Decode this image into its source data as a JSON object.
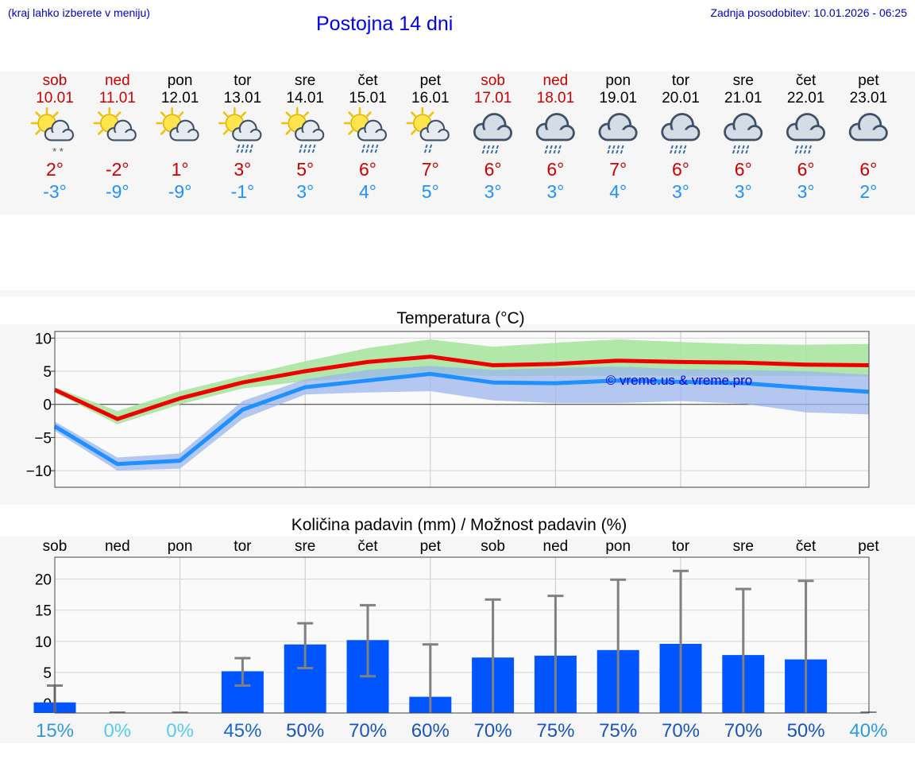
{
  "header": {
    "menu_hint": "(kraj lahko izberete v meniju)",
    "title": "Postojna 14 dni",
    "last_update": "Zadnja posodobitev: 10.01.2026 - 06:25"
  },
  "colors": {
    "weekend": "#cc0000",
    "weekday": "#000000",
    "tmax": "#cc0000",
    "tmin": "#1e90ff",
    "tmax_line": "#ee0000",
    "tmin_line": "#1e90ff",
    "tmax_band": "#a8e4a0",
    "tmin_band": "#9bb6ee",
    "bar": "#0055ff",
    "whisker": "#808080",
    "link": "#0000ee"
  },
  "days": [
    {
      "name": "sob",
      "date": "10.01",
      "weekend": true,
      "icon": "sun-cloud-snow-icon",
      "tmax": "2°",
      "tmin": "-3°"
    },
    {
      "name": "ned",
      "date": "11.01",
      "weekend": true,
      "icon": "sun-cloud-icon",
      "tmax": "-2°",
      "tmin": "-9°"
    },
    {
      "name": "pon",
      "date": "12.01",
      "weekend": false,
      "icon": "sun-cloud-icon",
      "tmax": "1°",
      "tmin": "-9°"
    },
    {
      "name": "tor",
      "date": "13.01",
      "weekend": false,
      "icon": "sun-cloud-rain-icon",
      "tmax": "3°",
      "tmin": "-1°"
    },
    {
      "name": "sre",
      "date": "14.01",
      "weekend": false,
      "icon": "sun-cloud-rain-icon",
      "tmax": "5°",
      "tmin": "3°"
    },
    {
      "name": "čet",
      "date": "15.01",
      "weekend": false,
      "icon": "sun-cloud-rain-icon",
      "tmax": "6°",
      "tmin": "4°"
    },
    {
      "name": "pet",
      "date": "16.01",
      "weekend": false,
      "icon": "sun-cloud-light-rain-icon",
      "tmax": "7°",
      "tmin": "5°"
    },
    {
      "name": "sob",
      "date": "17.01",
      "weekend": true,
      "icon": "cloud-rain-icon",
      "tmax": "6°",
      "tmin": "3°"
    },
    {
      "name": "ned",
      "date": "18.01",
      "weekend": true,
      "icon": "cloud-rain-icon",
      "tmax": "6°",
      "tmin": "3°"
    },
    {
      "name": "pon",
      "date": "19.01",
      "weekend": false,
      "icon": "cloud-rain-icon",
      "tmax": "7°",
      "tmin": "4°"
    },
    {
      "name": "tor",
      "date": "20.01",
      "weekend": false,
      "icon": "cloud-rain-icon",
      "tmax": "6°",
      "tmin": "3°"
    },
    {
      "name": "sre",
      "date": "21.01",
      "weekend": false,
      "icon": "cloud-rain-icon",
      "tmax": "6°",
      "tmin": "3°"
    },
    {
      "name": "čet",
      "date": "22.01",
      "weekend": false,
      "icon": "cloud-rain-icon",
      "tmax": "6°",
      "tmin": "3°"
    },
    {
      "name": "pet",
      "date": "23.01",
      "weekend": false,
      "icon": "cloud-icon",
      "tmax": "6°",
      "tmin": "2°"
    }
  ],
  "chart_data": [
    {
      "type": "line",
      "title": "Temperatura (°C)",
      "x": [
        0,
        1,
        2,
        3,
        4,
        5,
        6,
        7,
        8,
        9,
        10,
        11,
        12,
        13
      ],
      "ylim": [
        -12.5,
        11
      ],
      "yticks": [
        10,
        5,
        0,
        -5,
        -10
      ],
      "ytick_labels": [
        "10",
        "5",
        "0",
        "−5",
        "−10"
      ],
      "series": [
        {
          "name": "tmax",
          "values": [
            2.2,
            -2.2,
            0.9,
            3.3,
            5.0,
            6.4,
            7.2,
            5.9,
            6.1,
            6.6,
            6.4,
            6.3,
            6.0,
            5.9
          ],
          "band_low": [
            1.8,
            -3.0,
            0.0,
            2.4,
            3.5,
            4.0,
            4.5,
            4.3,
            4.3,
            4.3,
            4.3,
            4.3,
            4.3,
            4.2
          ],
          "band_high": [
            2.6,
            -1.0,
            2.0,
            4.3,
            6.5,
            8.5,
            9.8,
            8.7,
            9.3,
            9.8,
            9.4,
            9.1,
            9.0,
            9.1
          ]
        },
        {
          "name": "tmin",
          "values": [
            -3.3,
            -9.0,
            -8.5,
            -0.8,
            2.6,
            3.6,
            4.6,
            3.3,
            3.2,
            3.6,
            3.4,
            3.2,
            2.5,
            1.9
          ],
          "band_low": [
            -4.0,
            -10.0,
            -9.7,
            -2.2,
            1.5,
            1.8,
            2.0,
            0.6,
            0.2,
            0.2,
            0.5,
            0.1,
            -1.2,
            -1.5
          ],
          "band_high": [
            -2.6,
            -8.0,
            -7.4,
            0.5,
            3.8,
            5.2,
            5.8,
            5.2,
            5.5,
            5.7,
            5.3,
            5.2,
            5.0,
            4.5
          ]
        }
      ],
      "watermark": "© vreme.us & vreme.pro"
    },
    {
      "type": "bar",
      "title": "Količina padavin (mm) / Možnost padavin (%)",
      "categories": [
        "sob",
        "ned",
        "pon",
        "tor",
        "sre",
        "čet",
        "pet",
        "sob",
        "ned",
        "pon",
        "tor",
        "sre",
        "čet",
        "pet"
      ],
      "values": [
        0.2,
        0,
        0,
        5.2,
        9.5,
        10.2,
        1.1,
        7.4,
        7.7,
        8.6,
        9.6,
        7.8,
        7.1,
        0
      ],
      "err_low": [
        0,
        0,
        0,
        2.9,
        5.7,
        4.4,
        0,
        0,
        0,
        0,
        0,
        0,
        0,
        0
      ],
      "err_high": [
        2.9,
        0,
        0,
        7.3,
        12.9,
        15.8,
        9.5,
        16.7,
        17.3,
        19.9,
        21.3,
        18.4,
        19.7,
        0
      ],
      "ylim": [
        -1.5,
        23.5
      ],
      "yticks": [
        20,
        15,
        10,
        5,
        0
      ],
      "ytick_labels": [
        "20",
        "15",
        "10",
        "5",
        "0"
      ],
      "probability": [
        "15%",
        "0%",
        "0%",
        "45%",
        "50%",
        "70%",
        "60%",
        "70%",
        "75%",
        "75%",
        "70%",
        "70%",
        "50%",
        "40%"
      ],
      "probability_colors": [
        "#3399dd",
        "#55ccee",
        "#55ccee",
        "#1a66cc",
        "#1a55bb",
        "#1a55bb",
        "#1a55bb",
        "#1a55bb",
        "#1a55bb",
        "#1a55bb",
        "#1a55bb",
        "#1a55bb",
        "#1a55bb",
        "#3399dd"
      ]
    }
  ]
}
